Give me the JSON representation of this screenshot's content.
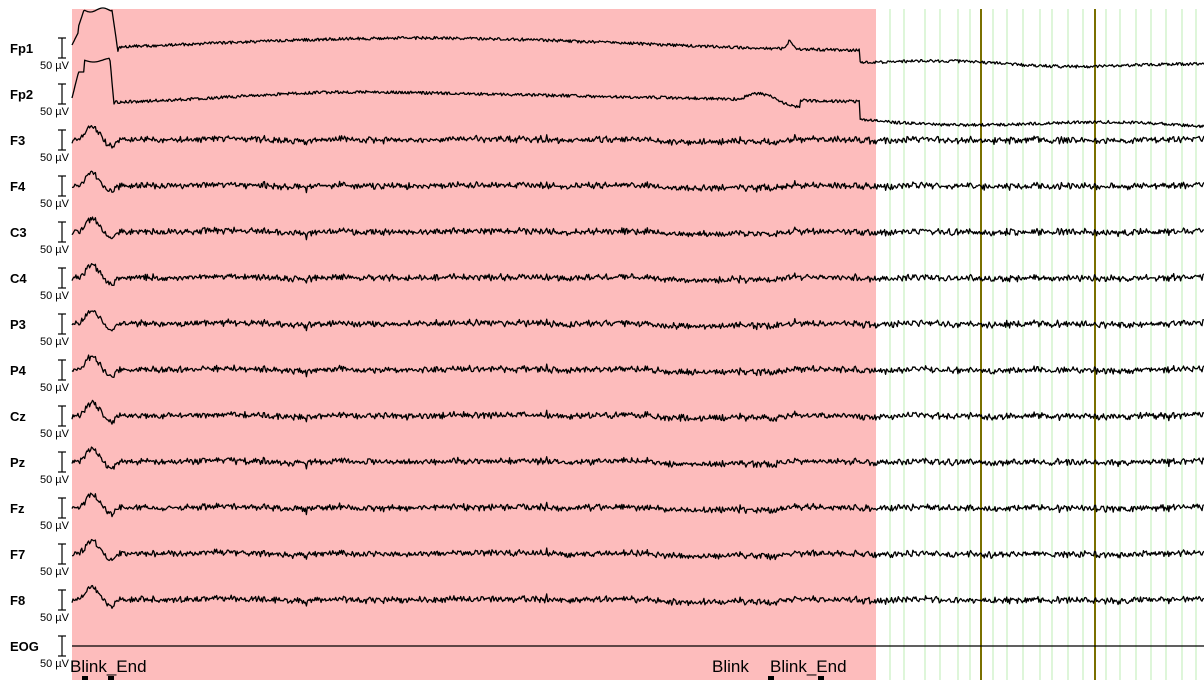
{
  "colors": {
    "artifact_region": "#fdbcbc",
    "grid_minor": "#c8f0c0",
    "grid_major": "#7a7000",
    "trace": "#000000",
    "background": "#ffffff"
  },
  "viewer": {
    "scale_label": "50 µV",
    "marker_labels": [
      "Blink_End",
      "Blink",
      "Blink_End"
    ]
  },
  "channels": [
    {
      "name": "Fp1",
      "kind": "eeg-frontopolar"
    },
    {
      "name": "Fp2",
      "kind": "eeg-frontopolar"
    },
    {
      "name": "F3",
      "kind": "eeg"
    },
    {
      "name": "F4",
      "kind": "eeg"
    },
    {
      "name": "C3",
      "kind": "eeg"
    },
    {
      "name": "C4",
      "kind": "eeg"
    },
    {
      "name": "P3",
      "kind": "eeg"
    },
    {
      "name": "P4",
      "kind": "eeg"
    },
    {
      "name": "Cz",
      "kind": "eeg"
    },
    {
      "name": "Pz",
      "kind": "eeg"
    },
    {
      "name": "Fz",
      "kind": "eeg"
    },
    {
      "name": "F7",
      "kind": "eeg"
    },
    {
      "name": "F8",
      "kind": "eeg"
    },
    {
      "name": "EOG",
      "kind": "flat"
    }
  ]
}
